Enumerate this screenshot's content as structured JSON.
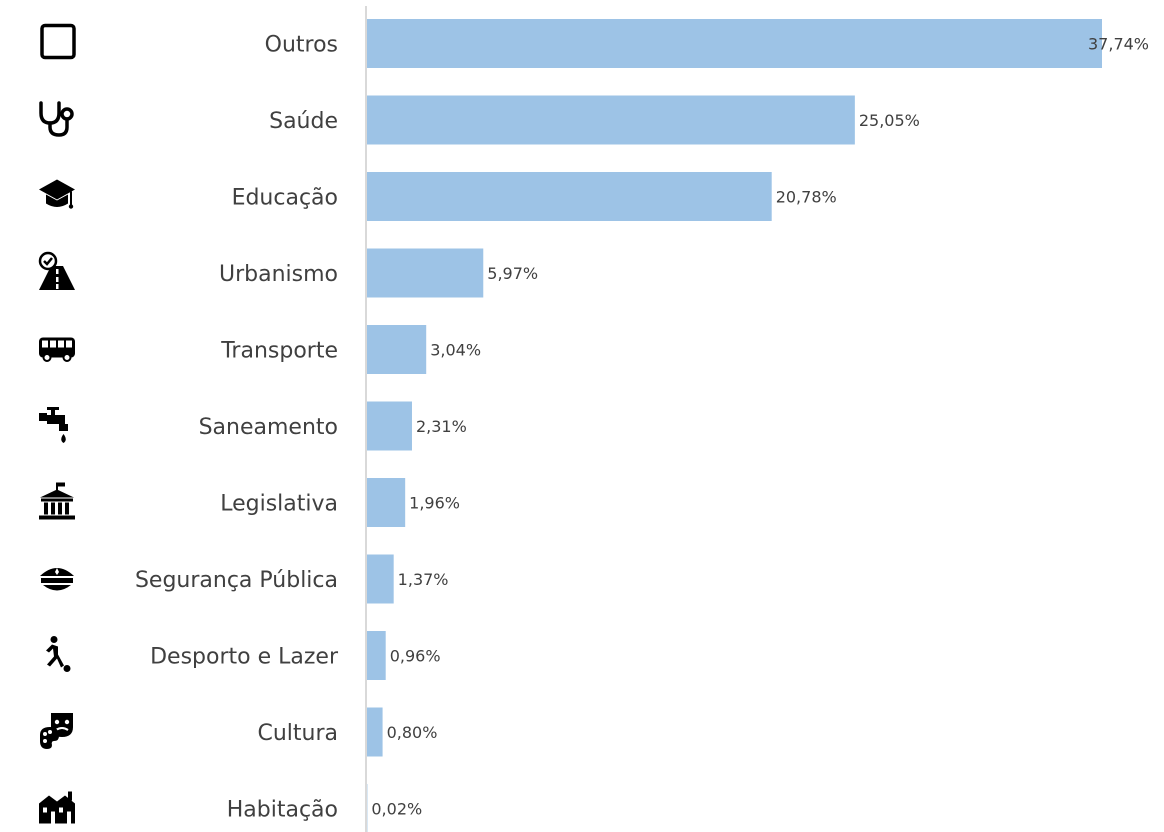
{
  "chart_data": {
    "type": "bar",
    "orientation": "horizontal",
    "title": "",
    "xlabel": "",
    "ylabel": "",
    "xlim": [
      0,
      37.74
    ],
    "grid": false,
    "legend": "none",
    "bar_color": "#9DC3E6",
    "axis_color": "#D9D9D9",
    "text_color": "#404040",
    "categories": [
      "Outros",
      "Saúde",
      "Educação",
      "Urbanismo",
      "Transporte",
      "Saneamento",
      "Legislativa",
      "Segurança Pública",
      "Desporto e Lazer",
      "Cultura",
      "Habitação"
    ],
    "values": [
      37.74,
      25.05,
      20.78,
      5.97,
      3.04,
      2.31,
      1.96,
      1.37,
      0.96,
      0.8,
      0.02
    ],
    "data_labels": [
      "37,74%",
      "25,05%",
      "20,78%",
      "5,97%",
      "3,04%",
      "2,31%",
      "1,96%",
      "1,37%",
      "0,96%",
      "0,80%",
      "0,02%"
    ],
    "icons": [
      "square-outline-icon",
      "stethoscope-icon",
      "graduation-cap-icon",
      "road-icon",
      "bus-icon",
      "faucet-icon",
      "government-building-icon",
      "police-cap-icon",
      "soccer-player-icon",
      "theater-palette-icon",
      "houses-icon"
    ]
  }
}
